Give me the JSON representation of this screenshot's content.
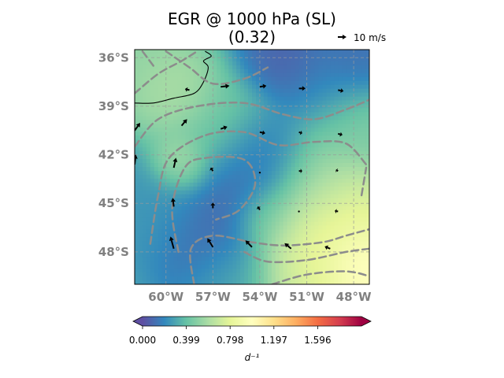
{
  "chart_data": {
    "type": "heatmap",
    "title": "EGR @ 1000 hPa (SL)",
    "subtitle": "(0.32)",
    "colormap": "Spectral_r",
    "colorbar": {
      "min": 0.0,
      "max": 1.995,
      "ticks": [
        "0.000",
        "0.399",
        "0.798",
        "1.197",
        "1.596"
      ],
      "label": "d⁻¹",
      "extend": "both"
    },
    "lon_range": [
      -62,
      -47
    ],
    "lat_range": [
      -50,
      -35.5
    ],
    "x_ticks": [
      "60°W",
      "57°W",
      "54°W",
      "51°W",
      "48°W"
    ],
    "y_ticks": [
      "36°S",
      "39°S",
      "42°S",
      "45°S",
      "48°S"
    ],
    "grid": true,
    "quiver_key": {
      "value": 10,
      "label": "10 m/s"
    },
    "field_blobs": [
      {
        "lon": -61.5,
        "lat": -36.5,
        "value": 0.55,
        "spread": 1.8
      },
      {
        "lon": -59.5,
        "lat": -38.0,
        "value": 0.65,
        "spread": 1.5
      },
      {
        "lon": -56.5,
        "lat": -40.5,
        "value": 0.45,
        "spread": 2.0
      },
      {
        "lon": -53.5,
        "lat": -42.0,
        "value": 0.1,
        "spread": 1.6
      },
      {
        "lon": -55.0,
        "lat": -44.0,
        "value": 0.05,
        "spread": 1.8
      },
      {
        "lon": -51.0,
        "lat": -43.5,
        "value": 0.55,
        "spread": 1.8
      },
      {
        "lon": -48.5,
        "lat": -40.0,
        "value": 0.5,
        "spread": 1.6
      },
      {
        "lon": -50.0,
        "lat": -38.0,
        "value": 0.15,
        "spread": 1.6
      },
      {
        "lon": -52.5,
        "lat": -36.0,
        "value": 0.05,
        "spread": 1.5
      },
      {
        "lon": -48.0,
        "lat": -36.0,
        "value": 0.1,
        "spread": 1.4
      },
      {
        "lon": -49.0,
        "lat": -46.5,
        "value": 0.9,
        "spread": 2.2
      },
      {
        "lon": -47.5,
        "lat": -49.0,
        "value": 1.15,
        "spread": 1.4
      },
      {
        "lon": -51.0,
        "lat": -48.5,
        "value": 0.8,
        "spread": 2.2
      },
      {
        "lon": -57.0,
        "lat": -47.5,
        "value": 0.05,
        "spread": 2.0
      },
      {
        "lon": -60.5,
        "lat": -45.5,
        "value": 0.25,
        "spread": 1.8
      },
      {
        "lon": -59.0,
        "lat": -42.5,
        "value": 0.65,
        "spread": 1.0
      },
      {
        "lon": -56.0,
        "lat": -49.5,
        "value": 0.35,
        "spread": 1.6
      },
      {
        "lon": -53.5,
        "lat": -45.8,
        "value": 0.55,
        "spread": 1.2
      }
    ],
    "base_value": 0.3,
    "contours": [
      [
        [
          -62,
          -41.5
        ],
        [
          -60.5,
          -39.8
        ],
        [
          -58,
          -39.0
        ],
        [
          -55,
          -38.8
        ],
        [
          -52.5,
          -39.5
        ],
        [
          -50.5,
          -39.8
        ],
        [
          -48.5,
          -39.2
        ],
        [
          -47,
          -38.6
        ]
      ],
      [
        [
          -62,
          -38.2
        ],
        [
          -60.5,
          -37.0
        ],
        [
          -59,
          -36.2
        ],
        [
          -58,
          -35.6
        ]
      ],
      [
        [
          -60,
          -35.6
        ],
        [
          -58.5,
          -36.6
        ],
        [
          -57,
          -37.6
        ],
        [
          -55,
          -37.3
        ],
        [
          -53.5,
          -36.6
        ]
      ],
      [
        [
          -61,
          -47.5
        ],
        [
          -60.5,
          -44.5
        ],
        [
          -59.8,
          -42.2
        ],
        [
          -57.5,
          -40.8
        ],
        [
          -55,
          -40.6
        ],
        [
          -52.8,
          -41.4
        ],
        [
          -50.5,
          -41.2
        ],
        [
          -48.5,
          -41.3
        ],
        [
          -47.2,
          -42.6
        ]
      ],
      [
        [
          -59.2,
          -48.0
        ],
        [
          -59.6,
          -45.3
        ],
        [
          -58.8,
          -42.8
        ],
        [
          -57.5,
          -42.2
        ],
        [
          -55,
          -42.3
        ],
        [
          -54.3,
          -43.8
        ],
        [
          -55.3,
          -45.4
        ],
        [
          -56.8,
          -46.0
        ]
      ],
      [
        [
          -58.2,
          -50.0
        ],
        [
          -58.4,
          -47.8
        ],
        [
          -57.0,
          -47.0
        ],
        [
          -54.5,
          -47.4
        ],
        [
          -52.5,
          -47.6
        ],
        [
          -50,
          -47.4
        ],
        [
          -48.5,
          -47.0
        ],
        [
          -47,
          -46.6
        ]
      ],
      [
        [
          -55,
          -48.0
        ],
        [
          -53.5,
          -48.6
        ],
        [
          -51,
          -48.5
        ],
        [
          -48.5,
          -48.0
        ],
        [
          -47,
          -47.8
        ]
      ],
      [
        [
          -53.2,
          -50.0
        ],
        [
          -51,
          -49.4
        ],
        [
          -48.5,
          -49.2
        ],
        [
          -47,
          -49.5
        ]
      ],
      [
        [
          -61.5,
          -35.6
        ],
        [
          -60.8,
          -36.5
        ]
      ],
      [
        [
          -47.5,
          -44.5
        ],
        [
          -47.2,
          -42.8
        ]
      ]
    ],
    "coastline": [
      [
        -62,
        -38.8
      ],
      [
        -60.8,
        -38.8
      ],
      [
        -59.5,
        -38.5
      ],
      [
        -58.2,
        -38.2
      ],
      [
        -57.6,
        -37.5
      ],
      [
        -57.3,
        -36.6
      ],
      [
        -57.6,
        -36.2
      ],
      [
        -57.1,
        -35.9
      ],
      [
        -57.5,
        -35.6
      ]
    ],
    "winds": [
      {
        "lon": -58.5,
        "lat": -38.0,
        "u": -0.4,
        "v": 0.1
      },
      {
        "lon": -56.5,
        "lat": -37.8,
        "u": 0.8,
        "v": 0.1
      },
      {
        "lon": -54.0,
        "lat": -37.8,
        "u": 0.6,
        "v": 0.1
      },
      {
        "lon": -51.5,
        "lat": -37.9,
        "u": 0.6,
        "v": 0.0
      },
      {
        "lon": -49.0,
        "lat": -38.0,
        "u": 0.5,
        "v": -0.1
      },
      {
        "lon": -62.0,
        "lat": -40.5,
        "u": 0.5,
        "v": 0.7
      },
      {
        "lon": -59.0,
        "lat": -40.2,
        "u": 0.5,
        "v": 0.6
      },
      {
        "lon": -56.5,
        "lat": -40.4,
        "u": 0.6,
        "v": 0.2
      },
      {
        "lon": -54.0,
        "lat": -40.6,
        "u": 0.5,
        "v": -0.1
      },
      {
        "lon": -51.5,
        "lat": -40.6,
        "u": 0.3,
        "v": -0.1
      },
      {
        "lon": -49.0,
        "lat": -40.7,
        "u": 0.4,
        "v": -0.1
      },
      {
        "lon": -62.0,
        "lat": -42.6,
        "u": 0.1,
        "v": 0.9
      },
      {
        "lon": -59.5,
        "lat": -42.8,
        "u": 0.2,
        "v": 0.9
      },
      {
        "lon": -57.0,
        "lat": -43.0,
        "u": -0.2,
        "v": 0.3
      },
      {
        "lon": -54.0,
        "lat": -43.1,
        "u": 0.05,
        "v": 0.0
      },
      {
        "lon": -51.5,
        "lat": -43.0,
        "u": 0.3,
        "v": 0.0
      },
      {
        "lon": -49.0,
        "lat": -43.0,
        "u": -0.2,
        "v": 0.1
      },
      {
        "lon": -59.5,
        "lat": -45.2,
        "u": -0.1,
        "v": 0.8
      },
      {
        "lon": -57.0,
        "lat": -45.3,
        "u": 0.0,
        "v": 0.5
      },
      {
        "lon": -54.0,
        "lat": -45.4,
        "u": -0.2,
        "v": 0.3
      },
      {
        "lon": -51.5,
        "lat": -45.5,
        "u": 0.05,
        "v": 0.0
      },
      {
        "lon": -49.0,
        "lat": -45.5,
        "u": -0.3,
        "v": 0.05
      },
      {
        "lon": -59.5,
        "lat": -47.8,
        "u": -0.3,
        "v": 1.1
      },
      {
        "lon": -57.0,
        "lat": -47.7,
        "u": -0.5,
        "v": 0.8
      },
      {
        "lon": -54.5,
        "lat": -47.7,
        "u": -0.6,
        "v": 0.6
      },
      {
        "lon": -52.0,
        "lat": -47.8,
        "u": -0.6,
        "v": 0.5
      },
      {
        "lon": -49.5,
        "lat": -47.8,
        "u": -0.5,
        "v": 0.2
      }
    ]
  }
}
